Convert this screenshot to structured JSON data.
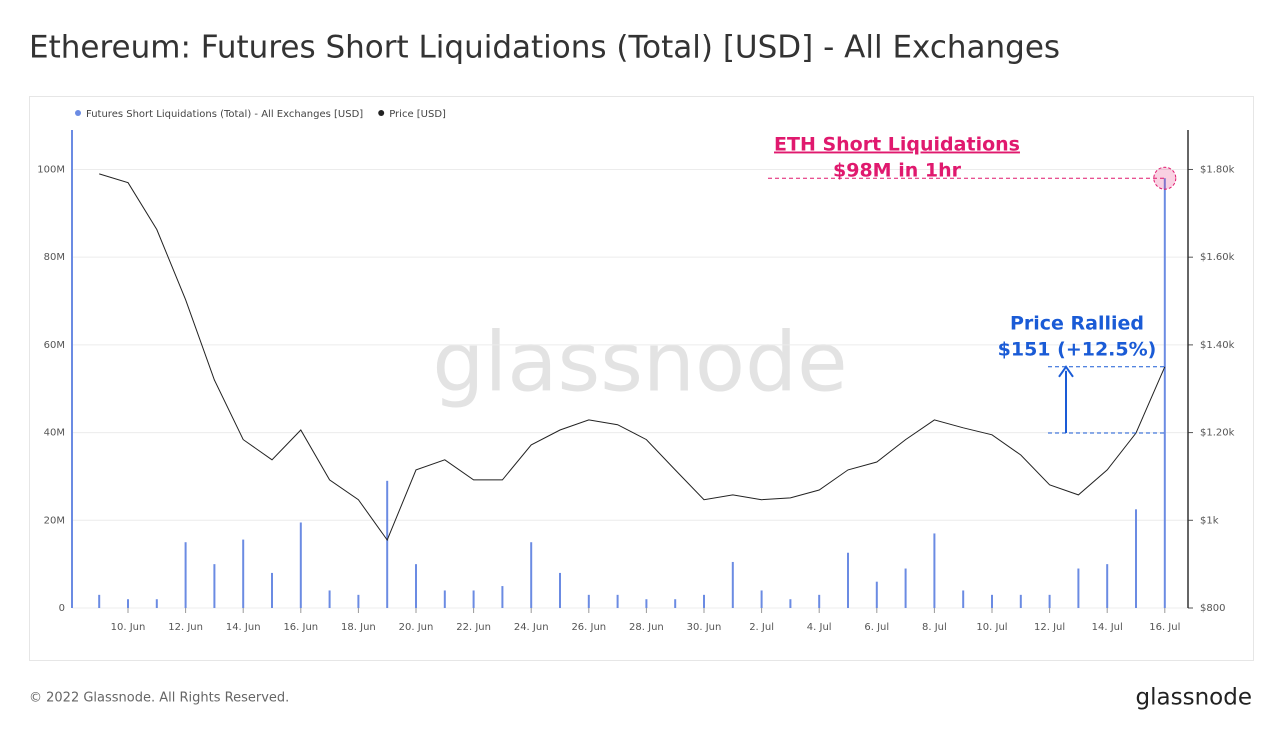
{
  "chart_data": {
    "type": "bar_line",
    "title": "Ethereum: Futures Short Liquidations (Total) [USD] - All Exchanges",
    "watermark": "glassnode",
    "footer": "© 2022 Glassnode. All Rights Reserved.",
    "brand": "glassnode",
    "annotations": [
      "ETH Short Liquidations",
      "$98M in 1hr",
      "Price Rallied",
      "$151 (+12.5%)"
    ],
    "categories": [
      null,
      "10. Jun",
      null,
      "12. Jun",
      null,
      "14. Jun",
      null,
      "16. Jun",
      null,
      "18. Jun",
      null,
      "20. Jun",
      null,
      "22. Jun",
      null,
      "24. Jun",
      null,
      "26. Jun",
      null,
      "28. Jun",
      null,
      "30. Jun",
      null,
      "2. Jul",
      null,
      "4. Jul",
      null,
      "6. Jul",
      null,
      "8. Jul",
      null,
      "10. Jul",
      null,
      "12. Jul",
      null,
      "14. Jul",
      null,
      "16. Jul"
    ],
    "series": [
      {
        "name": "Futures Short Liquidations (Total) - All Exchanges [USD]",
        "color": "#6b8be3",
        "axis": "y",
        "values": [
          3000000,
          2000000,
          2000000,
          15000000,
          10000000,
          15600000,
          8000000,
          19500000,
          4000000,
          3000000,
          29000000,
          10000000,
          4000000,
          4000000,
          5000000,
          15000000,
          8000000,
          3000000,
          3000000,
          2000000,
          2000000,
          3000000,
          10500000,
          4000000,
          2000000,
          3000000,
          12600000,
          6000000,
          9000000,
          17000000,
          4000000,
          3000000,
          3000000,
          3000000,
          9000000,
          10000000,
          22500000,
          98000000
        ]
      },
      {
        "name": "Price [USD]",
        "color": "#222222",
        "axis": "y2",
        "values": [
          1790,
          1770,
          1663,
          1503,
          1320,
          1184,
          1138,
          1206,
          1092,
          1047,
          955,
          1115,
          1138,
          1092,
          1092,
          1172,
          1206,
          1229,
          1218,
          1184,
          1115,
          1047,
          1058,
          1047,
          1051,
          1069,
          1115,
          1133,
          1184,
          1229,
          1211,
          1195,
          1149,
          1081,
          1058,
          1115,
          1199,
          1350
        ]
      }
    ],
    "ylim": [
      0,
      109000000
    ],
    "yticks": [
      0,
      {
        "value": 20000000,
        "label": "20M"
      },
      {
        "value": 40000000,
        "label": "40M"
      },
      {
        "value": 60000000,
        "label": "60M"
      },
      {
        "value": 80000000,
        "label": "80M"
      },
      {
        "value": 100000000,
        "label": "100M"
      }
    ],
    "y2lim": [
      800,
      1890
    ],
    "y2ticks": [
      {
        "value": 800,
        "label": "$800"
      },
      {
        "value": 1000,
        "label": "$1k"
      },
      {
        "value": 1200,
        "label": "$1.20k"
      },
      {
        "value": 1400,
        "label": "$1.40k"
      },
      {
        "value": 1600,
        "label": "$1.60k"
      },
      {
        "value": 1800,
        "label": "$1.80k"
      }
    ],
    "grid": true
  }
}
